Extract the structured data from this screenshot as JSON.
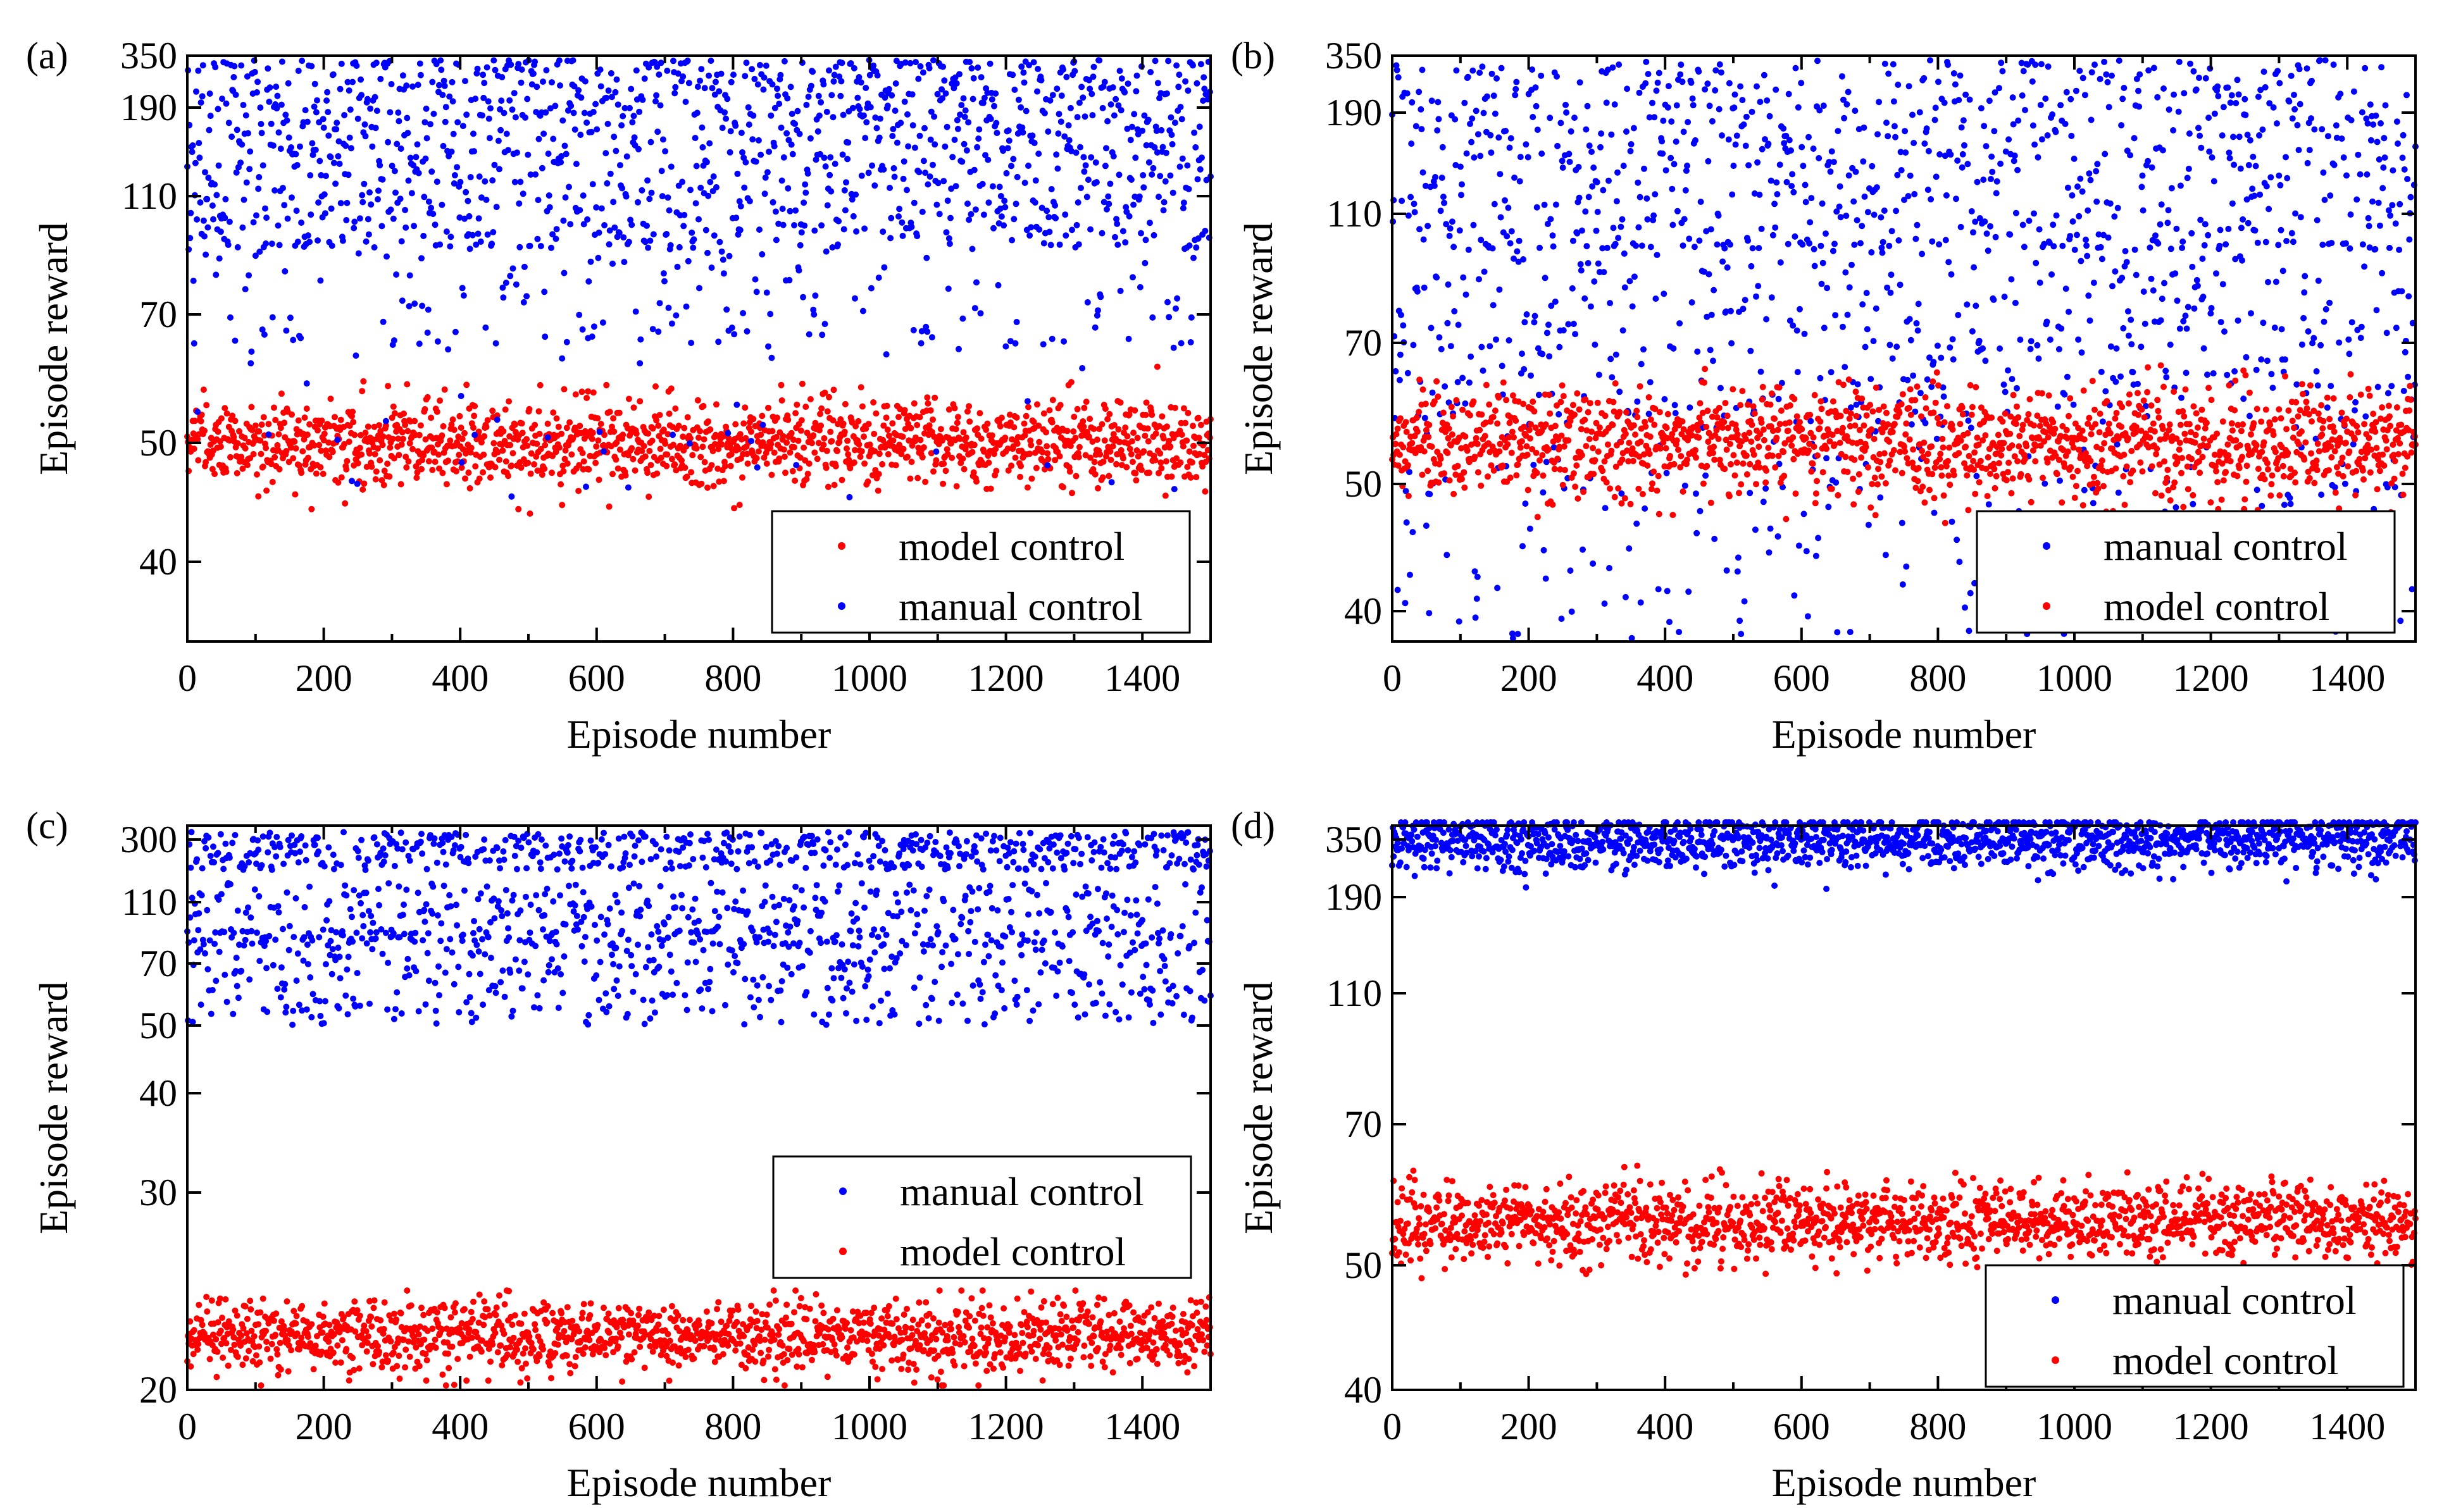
{
  "figure": {
    "description_tag": "Episode reward vs episode number, four panels"
  },
  "chart_data": [
    {
      "panel": "(a)",
      "type": "scatter",
      "xlabel": "Episode number",
      "ylabel": "Episode reward",
      "xlim": [
        0,
        1500
      ],
      "xticks": [
        0,
        200,
        400,
        600,
        800,
        1000,
        1200,
        1400
      ],
      "yticks": [
        "40",
        "50",
        "70",
        "110",
        "190",
        "350"
      ],
      "y_scale": "categorical-log",
      "legend_position": "bottom-right",
      "series": [
        {
          "name": "model control",
          "color": "#ff0000",
          "n_points": 1500,
          "center": "50",
          "spread": "46-58",
          "outliers": "42-60"
        },
        {
          "name": "manual control",
          "color": "#0000ff",
          "n_points": 1500,
          "center": "110-350",
          "spread": "100-350",
          "sparse_low": "60-90"
        }
      ],
      "legend_order": [
        "model control",
        "manual control"
      ]
    },
    {
      "panel": "(b)",
      "type": "scatter",
      "xlabel": "Episode number",
      "ylabel": "Episode reward",
      "xlim": [
        0,
        1500
      ],
      "xticks": [
        0,
        200,
        400,
        600,
        800,
        1000,
        1200,
        1400
      ],
      "yticks": [
        "40",
        "50",
        "70",
        "110",
        "190",
        "350"
      ],
      "y_scale": "categorical-log",
      "legend_position": "bottom-right",
      "series": [
        {
          "name": "manual control",
          "color": "#0000ff",
          "n_points": 1500,
          "spread": "38-350"
        },
        {
          "name": "model control",
          "color": "#ff0000",
          "n_points": 1500,
          "center": "56",
          "spread": "48-68"
        }
      ],
      "legend_order": [
        "manual control",
        "model control"
      ]
    },
    {
      "panel": "(c)",
      "type": "scatter",
      "xlabel": "Episode number",
      "ylabel": "Episode reward",
      "xlim": [
        0,
        1500
      ],
      "xticks": [
        0,
        200,
        400,
        600,
        800,
        1000,
        1200,
        1400
      ],
      "yticks": [
        "20",
        "30",
        "40",
        "50",
        "70",
        "110",
        "300"
      ],
      "y_scale": "categorical-log",
      "legend_position": "bottom-right",
      "series": [
        {
          "name": "manual control",
          "color": "#0000ff",
          "n_points": 1500,
          "spread": "52-300"
        },
        {
          "name": "model control",
          "color": "#ff0000",
          "n_points": 1500,
          "center": "22",
          "spread": "20-25"
        }
      ],
      "legend_order": [
        "manual control",
        "model control"
      ]
    },
    {
      "panel": "(d)",
      "type": "scatter",
      "xlabel": "Episode number",
      "ylabel": "Episode reward",
      "xlim": [
        0,
        1500
      ],
      "xticks": [
        0,
        200,
        400,
        600,
        800,
        1000,
        1200,
        1400
      ],
      "yticks": [
        "40",
        "50",
        "70",
        "110",
        "190",
        "350"
      ],
      "y_scale": "categorical-log",
      "legend_position": "bottom-right",
      "series": [
        {
          "name": "manual control",
          "color": "#0000ff",
          "n_points": 1500,
          "center": "300",
          "spread": "190-350"
        },
        {
          "name": "model control",
          "color": "#ff0000",
          "n_points": 1500,
          "center": "56",
          "spread": "50-64"
        }
      ],
      "legend_order": [
        "manual control",
        "model control"
      ]
    }
  ]
}
